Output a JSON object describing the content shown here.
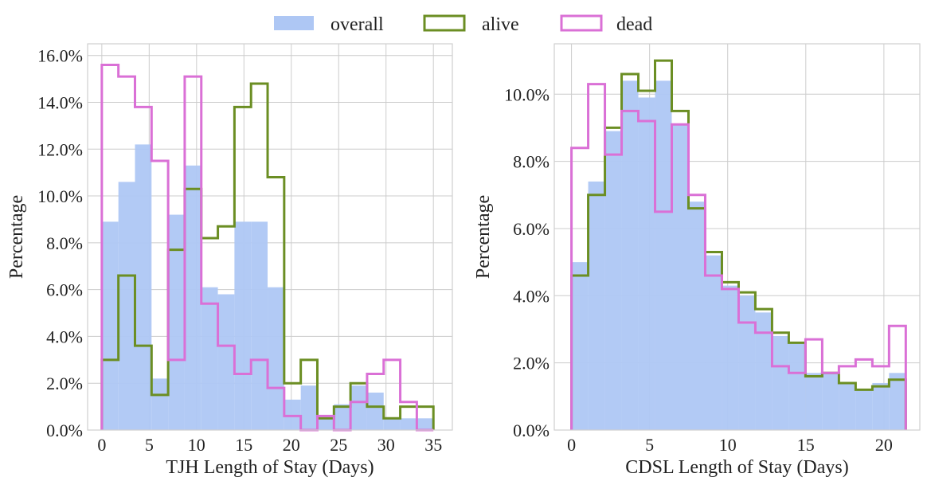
{
  "colors": {
    "overall": "#aec7f4",
    "alive": "#6b8e23",
    "dead": "#da70d6",
    "grid": "#cccccc",
    "frame": "#cfcfcf"
  },
  "legend": {
    "overall": "overall",
    "alive": "alive",
    "dead": "dead"
  },
  "chart_data": [
    {
      "type": "histogram",
      "xlabel": "TJH Length of Stay (Days)",
      "ylabel": "Percentage",
      "xlim": [
        -1.5,
        37
      ],
      "ylim": [
        0,
        16.5
      ],
      "xticks": [
        0,
        5,
        10,
        15,
        20,
        25,
        30,
        35
      ],
      "xtick_labels": [
        "0",
        "5",
        "10",
        "15",
        "20",
        "25",
        "30",
        "35"
      ],
      "yticks": [
        0,
        2,
        4,
        6,
        8,
        10,
        12,
        14,
        16
      ],
      "ytick_labels": [
        "0.0%",
        "2.0%",
        "4.0%",
        "6.0%",
        "8.0%",
        "10.0%",
        "12.0%",
        "14.0%",
        "16.0%"
      ],
      "bin_edges": [
        0,
        1.75,
        3.5,
        5.25,
        7,
        8.75,
        10.5,
        12.25,
        14,
        15.75,
        17.5,
        19.25,
        21,
        22.75,
        24.5,
        26.25,
        28,
        29.75,
        31.5,
        33.25,
        35
      ],
      "series": [
        {
          "name": "overall",
          "style": "filled",
          "values": [
            8.9,
            10.6,
            12.2,
            2.2,
            9.2,
            11.3,
            6.1,
            5.8,
            8.9,
            8.9,
            6.1,
            1.3,
            1.9,
            0.5,
            1.1,
            1.9,
            1.6,
            0.5,
            0.5,
            0.5
          ]
        },
        {
          "name": "alive",
          "style": "step",
          "values": [
            3.0,
            6.6,
            3.6,
            1.5,
            7.7,
            10.3,
            8.2,
            8.7,
            13.8,
            14.8,
            10.8,
            2.0,
            3.0,
            0.5,
            1.0,
            2.0,
            1.0,
            0.5,
            1.0,
            1.0
          ]
        },
        {
          "name": "dead",
          "style": "step",
          "values": [
            15.6,
            15.1,
            13.8,
            11.5,
            3.0,
            15.1,
            5.4,
            3.6,
            2.4,
            3.0,
            1.8,
            0.6,
            0.0,
            0.6,
            0.0,
            1.2,
            2.4,
            3.0,
            1.2,
            0.0
          ]
        }
      ]
    },
    {
      "type": "histogram",
      "xlabel": "CDSL Length of Stay (Days)",
      "ylabel": "Percentage",
      "xlim": [
        -1.1,
        22.3
      ],
      "ylim": [
        0,
        11.5
      ],
      "xticks": [
        0,
        5,
        10,
        15,
        20
      ],
      "xtick_labels": [
        "0",
        "5",
        "10",
        "15",
        "20"
      ],
      "yticks": [
        0,
        2,
        4,
        6,
        8,
        10
      ],
      "ytick_labels": [
        "0.0%",
        "2.0%",
        "4.0%",
        "6.0%",
        "8.0%",
        "10.0%"
      ],
      "bin_edges": [
        0,
        1.07,
        2.14,
        3.21,
        4.28,
        5.35,
        6.42,
        7.49,
        8.56,
        9.63,
        10.7,
        11.77,
        12.84,
        13.91,
        14.98,
        16.05,
        17.12,
        18.19,
        19.26,
        20.33,
        21.4
      ],
      "series": [
        {
          "name": "overall",
          "style": "filled",
          "values": [
            5.0,
            7.4,
            8.9,
            10.4,
            9.9,
            10.4,
            9.1,
            6.8,
            5.2,
            4.3,
            4.0,
            3.5,
            2.8,
            2.6,
            1.7,
            1.7,
            1.4,
            1.2,
            1.4,
            1.7
          ]
        },
        {
          "name": "alive",
          "style": "step",
          "values": [
            4.6,
            7.0,
            9.0,
            10.6,
            10.1,
            11.0,
            9.5,
            6.6,
            5.3,
            4.4,
            4.1,
            3.6,
            2.9,
            2.6,
            1.6,
            1.7,
            1.4,
            1.2,
            1.3,
            1.5
          ]
        },
        {
          "name": "dead",
          "style": "step",
          "values": [
            8.4,
            10.3,
            8.2,
            9.5,
            9.2,
            6.5,
            9.1,
            7.0,
            4.6,
            4.2,
            3.2,
            2.9,
            1.9,
            1.7,
            2.7,
            1.7,
            1.9,
            2.1,
            1.9,
            3.1
          ]
        }
      ]
    }
  ]
}
